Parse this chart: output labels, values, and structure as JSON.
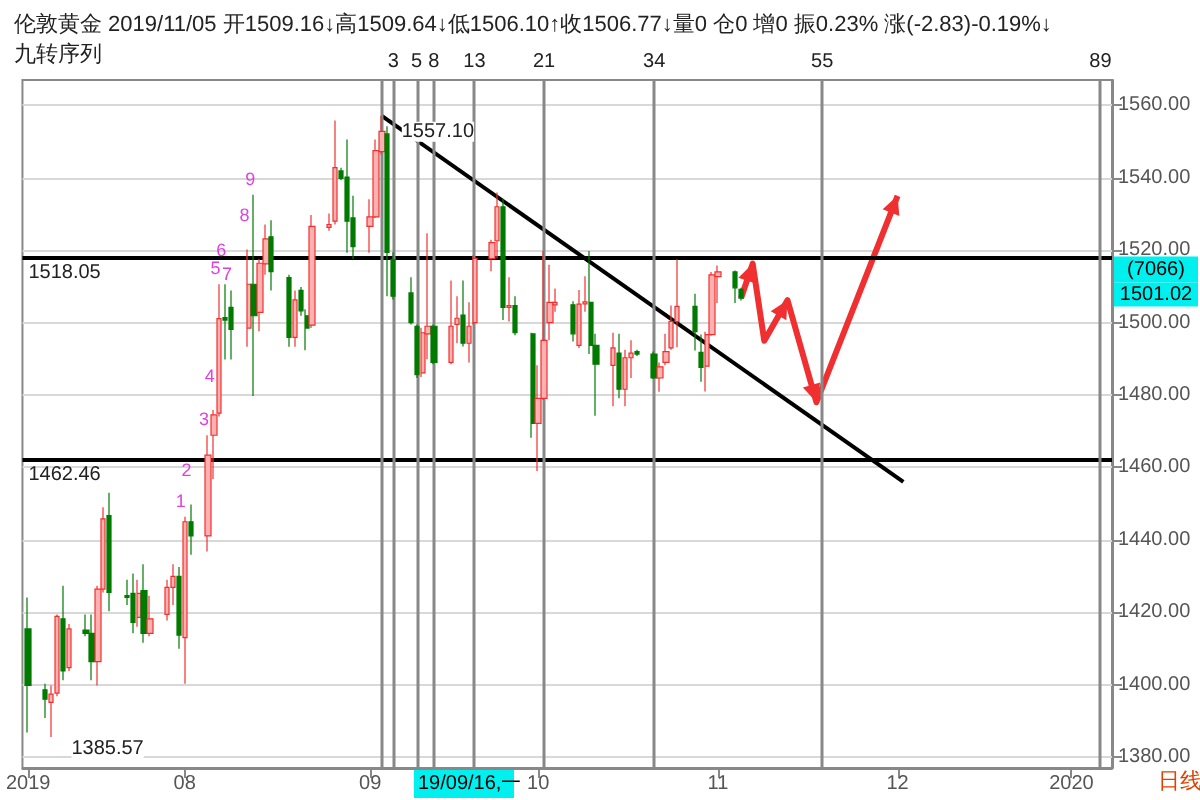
{
  "chart_data": {
    "type": "candlestick",
    "title": "伦敦黄金 2019/11/05 开1509.16↓高1509.64↓低1506.10↑收1506.77↓量0 仓0 增0 振0.23% 涨(-2.83)-0.19%↓",
    "subtitle": "九转序列",
    "x": [
      "2019-07-05",
      "2019-07-08",
      "2019-07-09",
      "2019-07-10",
      "2019-07-11",
      "2019-07-12",
      "2019-07-15",
      "2019-07-16",
      "2019-07-17",
      "2019-07-18",
      "2019-07-19",
      "2019-07-22",
      "2019-07-23",
      "2019-07-24",
      "2019-07-25",
      "2019-07-26",
      "2019-07-29",
      "2019-07-30",
      "2019-07-31",
      "2019-08-01",
      "2019-08-02",
      "2019-08-05",
      "2019-08-06",
      "2019-08-07",
      "2019-08-08",
      "2019-08-09",
      "2019-08-12",
      "2019-08-13",
      "2019-08-14",
      "2019-08-15",
      "2019-08-16",
      "2019-08-19",
      "2019-08-20",
      "2019-08-21",
      "2019-08-22",
      "2019-08-23",
      "2019-08-26",
      "2019-08-27",
      "2019-08-28",
      "2019-08-29",
      "2019-08-30",
      "2019-09-02",
      "2019-09-03",
      "2019-09-04",
      "2019-09-05",
      "2019-09-06",
      "2019-09-09",
      "2019-09-10",
      "2019-09-11",
      "2019-09-12",
      "2019-09-13",
      "2019-09-16",
      "2019-09-17",
      "2019-09-18",
      "2019-09-19",
      "2019-09-20",
      "2019-09-23",
      "2019-09-24",
      "2019-09-25",
      "2019-09-26",
      "2019-09-27",
      "2019-09-30",
      "2019-10-01",
      "2019-10-02",
      "2019-10-03",
      "2019-10-04",
      "2019-10-07",
      "2019-10-08",
      "2019-10-09",
      "2019-10-10",
      "2019-10-11",
      "2019-10-14",
      "2019-10-15",
      "2019-10-16",
      "2019-10-17",
      "2019-10-18",
      "2019-10-21",
      "2019-10-22",
      "2019-10-23",
      "2019-10-24",
      "2019-10-25",
      "2019-10-28",
      "2019-10-29",
      "2019-10-30",
      "2019-10-31",
      "2019-11-01",
      "2019-11-04",
      "2019-11-05"
    ],
    "ohlc": [
      [
        1415.4,
        1424.1,
        1386.8,
        1399.8
      ],
      [
        1398.6,
        1400.3,
        1390.8,
        1396.0
      ],
      [
        1395.1,
        1399.8,
        1385.57,
        1397.4
      ],
      [
        1397.7,
        1419.4,
        1396.8,
        1418.9
      ],
      [
        1418.2,
        1427.3,
        1401.2,
        1403.8
      ],
      [
        1404.7,
        1416.8,
        1403.8,
        1415.4
      ],
      [
        1415.1,
        1419.4,
        1413.4,
        1414.2
      ],
      [
        1414.2,
        1419.4,
        1401.2,
        1406.4
      ],
      [
        1406.4,
        1427.3,
        1399.8,
        1426.4
      ],
      [
        1426.4,
        1449.0,
        1425.5,
        1445.8
      ],
      [
        1446.7,
        1453.0,
        1420.3,
        1425.5
      ],
      [
        1424.6,
        1429.0,
        1422.0,
        1424.1
      ],
      [
        1425.2,
        1430.7,
        1414.2,
        1417.2
      ],
      [
        1418.6,
        1429.0,
        1416.0,
        1425.2
      ],
      [
        1426.0,
        1433.3,
        1411.6,
        1414.2
      ],
      [
        1414.2,
        1424.6,
        1413.4,
        1418.2
      ],
      [
        1419.4,
        1429.0,
        1417.7,
        1426.9
      ],
      [
        1426.9,
        1433.3,
        1422.0,
        1429.9
      ],
      [
        1429.9,
        1432.5,
        1409.9,
        1413.7
      ],
      [
        1413.0,
        1446.4,
        1400.3,
        1445.0
      ],
      [
        1445.0,
        1449.8,
        1435.9,
        1441.1
      ],
      [
        1441.1,
        1468.9,
        1436.8,
        1463.4
      ],
      [
        1468.9,
        1475.9,
        1456.8,
        1474.5
      ],
      [
        1475.0,
        1510.6,
        1474.1,
        1501.1
      ],
      [
        1501.4,
        1510.6,
        1489.8,
        1500.7
      ],
      [
        1504.2,
        1508.9,
        1489.8,
        1498.1
      ],
      [
        1498.5,
        1520.2,
        1493.3,
        1510.6
      ],
      [
        1510.6,
        1535.3,
        1479.7,
        1501.9
      ],
      [
        1502.8,
        1517.6,
        1497.6,
        1516.4
      ],
      [
        1516.2,
        1527.1,
        1513.2,
        1523.1
      ],
      [
        1523.7,
        1528.3,
        1508.9,
        1514.1
      ],
      [
        1512.4,
        1513.2,
        1493.3,
        1495.9
      ],
      [
        1495.9,
        1508.9,
        1493.3,
        1506.3
      ],
      [
        1508.9,
        1509.8,
        1501.9,
        1503.2
      ],
      [
        1501.9,
        1503.7,
        1492.4,
        1498.5
      ],
      [
        1499.3,
        1529.7,
        1498.5,
        1526.6
      ],
      [
        1526.3,
        1530.1,
        1525.4,
        1527.1
      ],
      [
        1528.0,
        1555.8,
        1527.1,
        1542.8
      ],
      [
        1541.9,
        1542.8,
        1539.3,
        1539.8
      ],
      [
        1540.2,
        1550.6,
        1519.3,
        1528.0
      ],
      [
        1528.9,
        1535.0,
        1517.6,
        1521.0
      ],
      [
        1526.6,
        1534.1,
        1519.3,
        1529.2
      ],
      [
        1529.2,
        1550.6,
        1528.9,
        1547.5
      ],
      [
        1547.2,
        1557.1,
        1546.4,
        1552.8
      ],
      [
        1552.1,
        1554.2,
        1507.3,
        1519.4
      ],
      [
        1517.4,
        1519.4,
        1506.4,
        1507.3
      ],
      [
        1508.2,
        1512.5,
        1499.5,
        1500.0
      ],
      [
        1499.0,
        1499.5,
        1484.7,
        1485.6
      ],
      [
        1486.1,
        1498.6,
        1485.0,
        1497.2
      ],
      [
        1496.9,
        1524.7,
        1489.9,
        1499.0
      ],
      [
        1499.0,
        1499.5,
        1488.5,
        1489.0
      ],
      [
        1489.0,
        1511.6,
        1488.5,
        1499.0
      ],
      [
        1499.5,
        1507.3,
        1494.3,
        1501.2
      ],
      [
        1502.1,
        1511.6,
        1493.4,
        1494.3
      ],
      [
        1494.3,
        1505.6,
        1489.0,
        1499.0
      ],
      [
        1500.0,
        1518.6,
        1499.5,
        1517.7
      ],
      [
        1517.7,
        1522.9,
        1514.2,
        1522.1
      ],
      [
        1522.6,
        1535.9,
        1517.7,
        1532.0
      ],
      [
        1532.0,
        1534.2,
        1500.7,
        1504.2
      ],
      [
        1504.2,
        1512.5,
        1500.3,
        1504.7
      ],
      [
        1504.7,
        1507.3,
        1496.5,
        1497.2
      ],
      [
        1496.9,
        1497.2,
        1468.2,
        1472.2
      ],
      [
        1472.2,
        1488.2,
        1459.0,
        1479.1
      ],
      [
        1479.1,
        1519.8,
        1478.6,
        1495.1
      ],
      [
        1500.0,
        1516.0,
        1495.1,
        1505.6
      ],
      [
        1504.9,
        1509.4,
        1503.0,
        1505.6
      ],
      [
        1504.9,
        1505.9,
        1494.8,
        1496.9
      ],
      [
        1493.7,
        1509.0,
        1493.0,
        1505.1
      ],
      [
        1505.2,
        1512.8,
        1503.0,
        1505.7
      ],
      [
        1505.6,
        1519.8,
        1491.3,
        1493.7
      ],
      [
        1493.7,
        1496.9,
        1474.3,
        1488.5
      ],
      [
        1488.2,
        1497.2,
        1476.9,
        1493.0
      ],
      [
        1491.6,
        1496.9,
        1479.1,
        1481.6
      ],
      [
        1481.6,
        1492.5,
        1476.9,
        1490.3
      ],
      [
        1490.3,
        1495.1,
        1484.7,
        1491.6
      ],
      [
        1492.0,
        1492.5,
        1490.8,
        1491.3
      ],
      [
        1491.3,
        1492.0,
        1484.4,
        1484.7
      ],
      [
        1484.7,
        1489.0,
        1480.9,
        1487.8
      ],
      [
        1489.0,
        1496.9,
        1488.2,
        1492.0
      ],
      [
        1493.0,
        1504.7,
        1492.5,
        1500.3
      ],
      [
        1500.3,
        1517.5,
        1493.2,
        1504.5
      ],
      [
        1504.5,
        1508.0,
        1492.3,
        1497.5
      ],
      [
        1491.8,
        1496.7,
        1483.7,
        1487.6
      ],
      [
        1488.0,
        1497.5,
        1481.0,
        1496.7
      ],
      [
        1496.7,
        1514.0,
        1496.4,
        1513.2
      ],
      [
        1512.7,
        1515.8,
        1505.4,
        1514.0
      ],
      [
        1514.0,
        1514.4,
        1505.4,
        1509.6
      ],
      [
        1509.16,
        1509.64,
        1506.1,
        1506.77
      ]
    ],
    "series": [
      {
        "type": "line",
        "x": [
          "2019-09-04",
          "2019-12-03"
        ],
        "values": [
          1557.1,
          1456
        ],
        "color": "#000000"
      },
      {
        "type": "line",
        "x": [
          "2019-11-05",
          "2019-11-07",
          "2019-11-09",
          "2019-11-13",
          "2019-11-18",
          "2019-12-02"
        ],
        "values": [
          1506.8,
          1516.3,
          1495,
          1506.2,
          1478,
          1535
        ],
        "color": "#f03030"
      }
    ],
    "xlim": [
      "2019-07-04",
      "2020-01-08"
    ],
    "xticks": [
      {
        "value": "2019-07-05",
        "label": "2019"
      },
      {
        "value": "2019-08-01",
        "label": "08"
      },
      {
        "value": "2019-09-02",
        "label": "09"
      },
      {
        "value": "2019-10-01",
        "label": "10"
      },
      {
        "value": "2019-11-01",
        "label": "11"
      },
      {
        "value": "2019-12-02",
        "label": "12"
      },
      {
        "value": "2020-01-01",
        "label": "2020"
      }
    ],
    "ylim": [
      1377,
      1567
    ],
    "yticks": [
      {
        "value": 1380,
        "label": "1380.00"
      },
      {
        "value": 1400,
        "label": "1400.00"
      },
      {
        "value": 1420,
        "label": "1420.00"
      },
      {
        "value": 1440,
        "label": "1440.00"
      },
      {
        "value": 1460,
        "label": "1460.00"
      },
      {
        "value": 1480,
        "label": "1480.00"
      },
      {
        "value": 1500,
        "label": "1500.00"
      },
      {
        "value": 1520,
        "label": "1520.00"
      },
      {
        "value": 1540,
        "label": "1540.00"
      },
      {
        "value": 1560,
        "label": "1560.00"
      }
    ],
    "grid": "y",
    "ref_lines": [
      {
        "axis": "y",
        "value": 1518.05,
        "label": "1518.05",
        "color": "#000000"
      },
      {
        "axis": "y",
        "value": 1462.46,
        "label": "1462.46",
        "color": "#000000"
      },
      {
        "axis": "x",
        "value": "2019-09-04",
        "label": null,
        "color": "#888888"
      },
      {
        "axis": "x",
        "value": "2019-09-06",
        "label": "3",
        "color": "#888888"
      },
      {
        "axis": "x",
        "value": "2019-09-10",
        "label": "5",
        "color": "#888888"
      },
      {
        "axis": "x",
        "value": "2019-09-13",
        "label": "8",
        "color": "#888888"
      },
      {
        "axis": "x",
        "value": "2019-09-20",
        "label": "13",
        "color": "#888888"
      },
      {
        "axis": "x",
        "value": "2019-10-02",
        "label": "21",
        "color": "#888888"
      },
      {
        "axis": "x",
        "value": "2019-10-21",
        "label": "34",
        "color": "#888888"
      },
      {
        "axis": "x",
        "value": "2019-11-19",
        "label": "55",
        "color": "#888888"
      },
      {
        "axis": "x",
        "value": "2020-01-06",
        "label": "89",
        "color": "#888888"
      }
    ],
    "annotations": [
      {
        "text": "1",
        "x": "2019-08-01",
        "y": 1446.4
      },
      {
        "text": "2",
        "x": "2019-08-02",
        "y": 1449.8
      },
      {
        "text": "3",
        "x": "2019-08-05",
        "y": 1468.9
      },
      {
        "text": "4",
        "x": "2019-08-06",
        "y": 1475.9
      },
      {
        "text": "5",
        "x": "2019-08-07",
        "y": 1510.6
      },
      {
        "text": "6",
        "x": "2019-08-08",
        "y": 1510.6
      },
      {
        "text": "7",
        "x": "2019-08-09",
        "y": 1508.9
      },
      {
        "text": "8",
        "x": "2019-08-12",
        "y": 1520.2
      },
      {
        "text": "9",
        "x": "2019-08-13",
        "y": 1535.3
      },
      {
        "text": "1557.10",
        "x": "2019-09-04",
        "y": 1557.1
      },
      {
        "text": "1385.57",
        "x": "2019-07-09",
        "y": 1385.57
      },
      "(7066)",
      "1501.02",
      "19/09/16,一",
      "日线"
    ]
  }
}
